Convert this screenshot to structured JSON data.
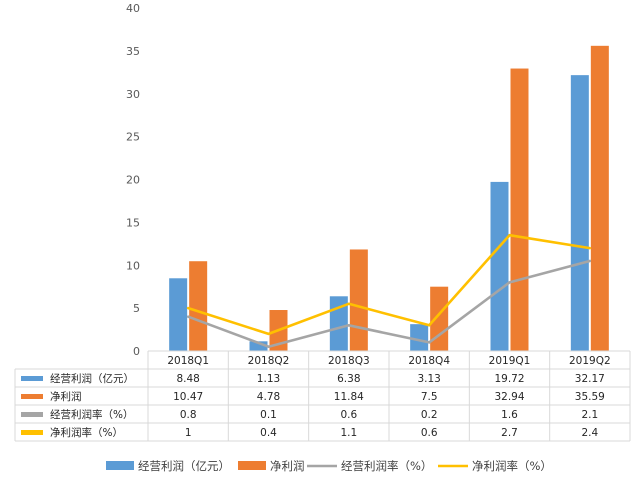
{
  "chart_data": {
    "type": "bar",
    "categories": [
      "2018Q1",
      "2018Q2",
      "2018Q3",
      "2018Q4",
      "2019Q1",
      "2019Q2"
    ],
    "ylim": [
      0,
      40
    ],
    "yticks": [
      0,
      5,
      10,
      15,
      20,
      25,
      30,
      35,
      40
    ],
    "grid": false,
    "legend_position": "bottom",
    "series": [
      {
        "name": "经营利润（亿元）",
        "kind": "bar",
        "color": "#5B9BD5",
        "values": [
          8.48,
          1.13,
          6.38,
          3.13,
          19.72,
          32.17
        ],
        "table_values": [
          "8.48",
          "1.13",
          "6.38",
          "3.13",
          "19.72",
          "32.17"
        ]
      },
      {
        "name": "净利润",
        "kind": "bar",
        "color": "#ED7D31",
        "values": [
          10.47,
          4.78,
          11.84,
          7.5,
          32.94,
          35.59
        ],
        "table_values": [
          "10.47",
          "4.78",
          "11.84",
          "7.5",
          "32.94",
          "35.59"
        ]
      },
      {
        "name": "经营利润率（%）",
        "kind": "line",
        "color": "#A5A5A5",
        "values": [
          0.8,
          0.1,
          0.6,
          0.2,
          1.6,
          2.1
        ],
        "table_values": [
          "0.8",
          "0.1",
          "0.6",
          "0.2",
          "1.6",
          "2.1"
        ]
      },
      {
        "name": "净利润率（%）",
        "kind": "line",
        "color": "#FFC000",
        "values": [
          1,
          0.4,
          1.1,
          0.6,
          2.7,
          2.4
        ],
        "table_values": [
          "1",
          "0.4",
          "1.1",
          "0.6",
          "2.7",
          "2.4"
        ]
      }
    ]
  }
}
